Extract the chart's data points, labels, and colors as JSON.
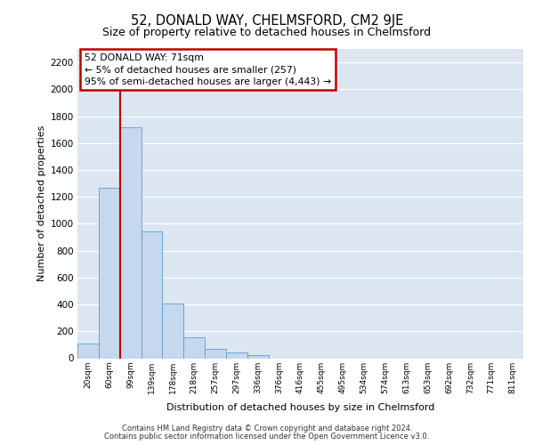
{
  "title_line1": "52, DONALD WAY, CHELMSFORD, CM2 9JE",
  "title_line2": "Size of property relative to detached houses in Chelmsford",
  "xlabel": "Distribution of detached houses by size in Chelmsford",
  "ylabel": "Number of detached properties",
  "categories": [
    "20sqm",
    "60sqm",
    "99sqm",
    "139sqm",
    "178sqm",
    "218sqm",
    "257sqm",
    "297sqm",
    "336sqm",
    "376sqm",
    "416sqm",
    "455sqm",
    "495sqm",
    "534sqm",
    "574sqm",
    "613sqm",
    "653sqm",
    "692sqm",
    "732sqm",
    "771sqm",
    "811sqm"
  ],
  "values": [
    110,
    1270,
    1720,
    940,
    410,
    155,
    70,
    40,
    25,
    0,
    0,
    0,
    0,
    0,
    0,
    0,
    0,
    0,
    0,
    0,
    0
  ],
  "bar_color": "#c5d8ed",
  "bar_edgecolor": "#5b9bd5",
  "background_color": "#dce6f1",
  "grid_color": "#ffffff",
  "vline_color": "#c00000",
  "vline_pos": 1.5,
  "ylim": [
    0,
    2300
  ],
  "yticks": [
    0,
    200,
    400,
    600,
    800,
    1000,
    1200,
    1400,
    1600,
    1800,
    2000,
    2200
  ],
  "annotation_text": "52 DONALD WAY: 71sqm\n← 5% of detached houses are smaller (257)\n95% of semi-detached houses are larger (4,443) →",
  "annotation_box_facecolor": "#ffffff",
  "annotation_box_edgecolor": "#c00000",
  "footer_line1": "Contains HM Land Registry data © Crown copyright and database right 2024.",
  "footer_line2": "Contains public sector information licensed under the Open Government Licence v3.0."
}
